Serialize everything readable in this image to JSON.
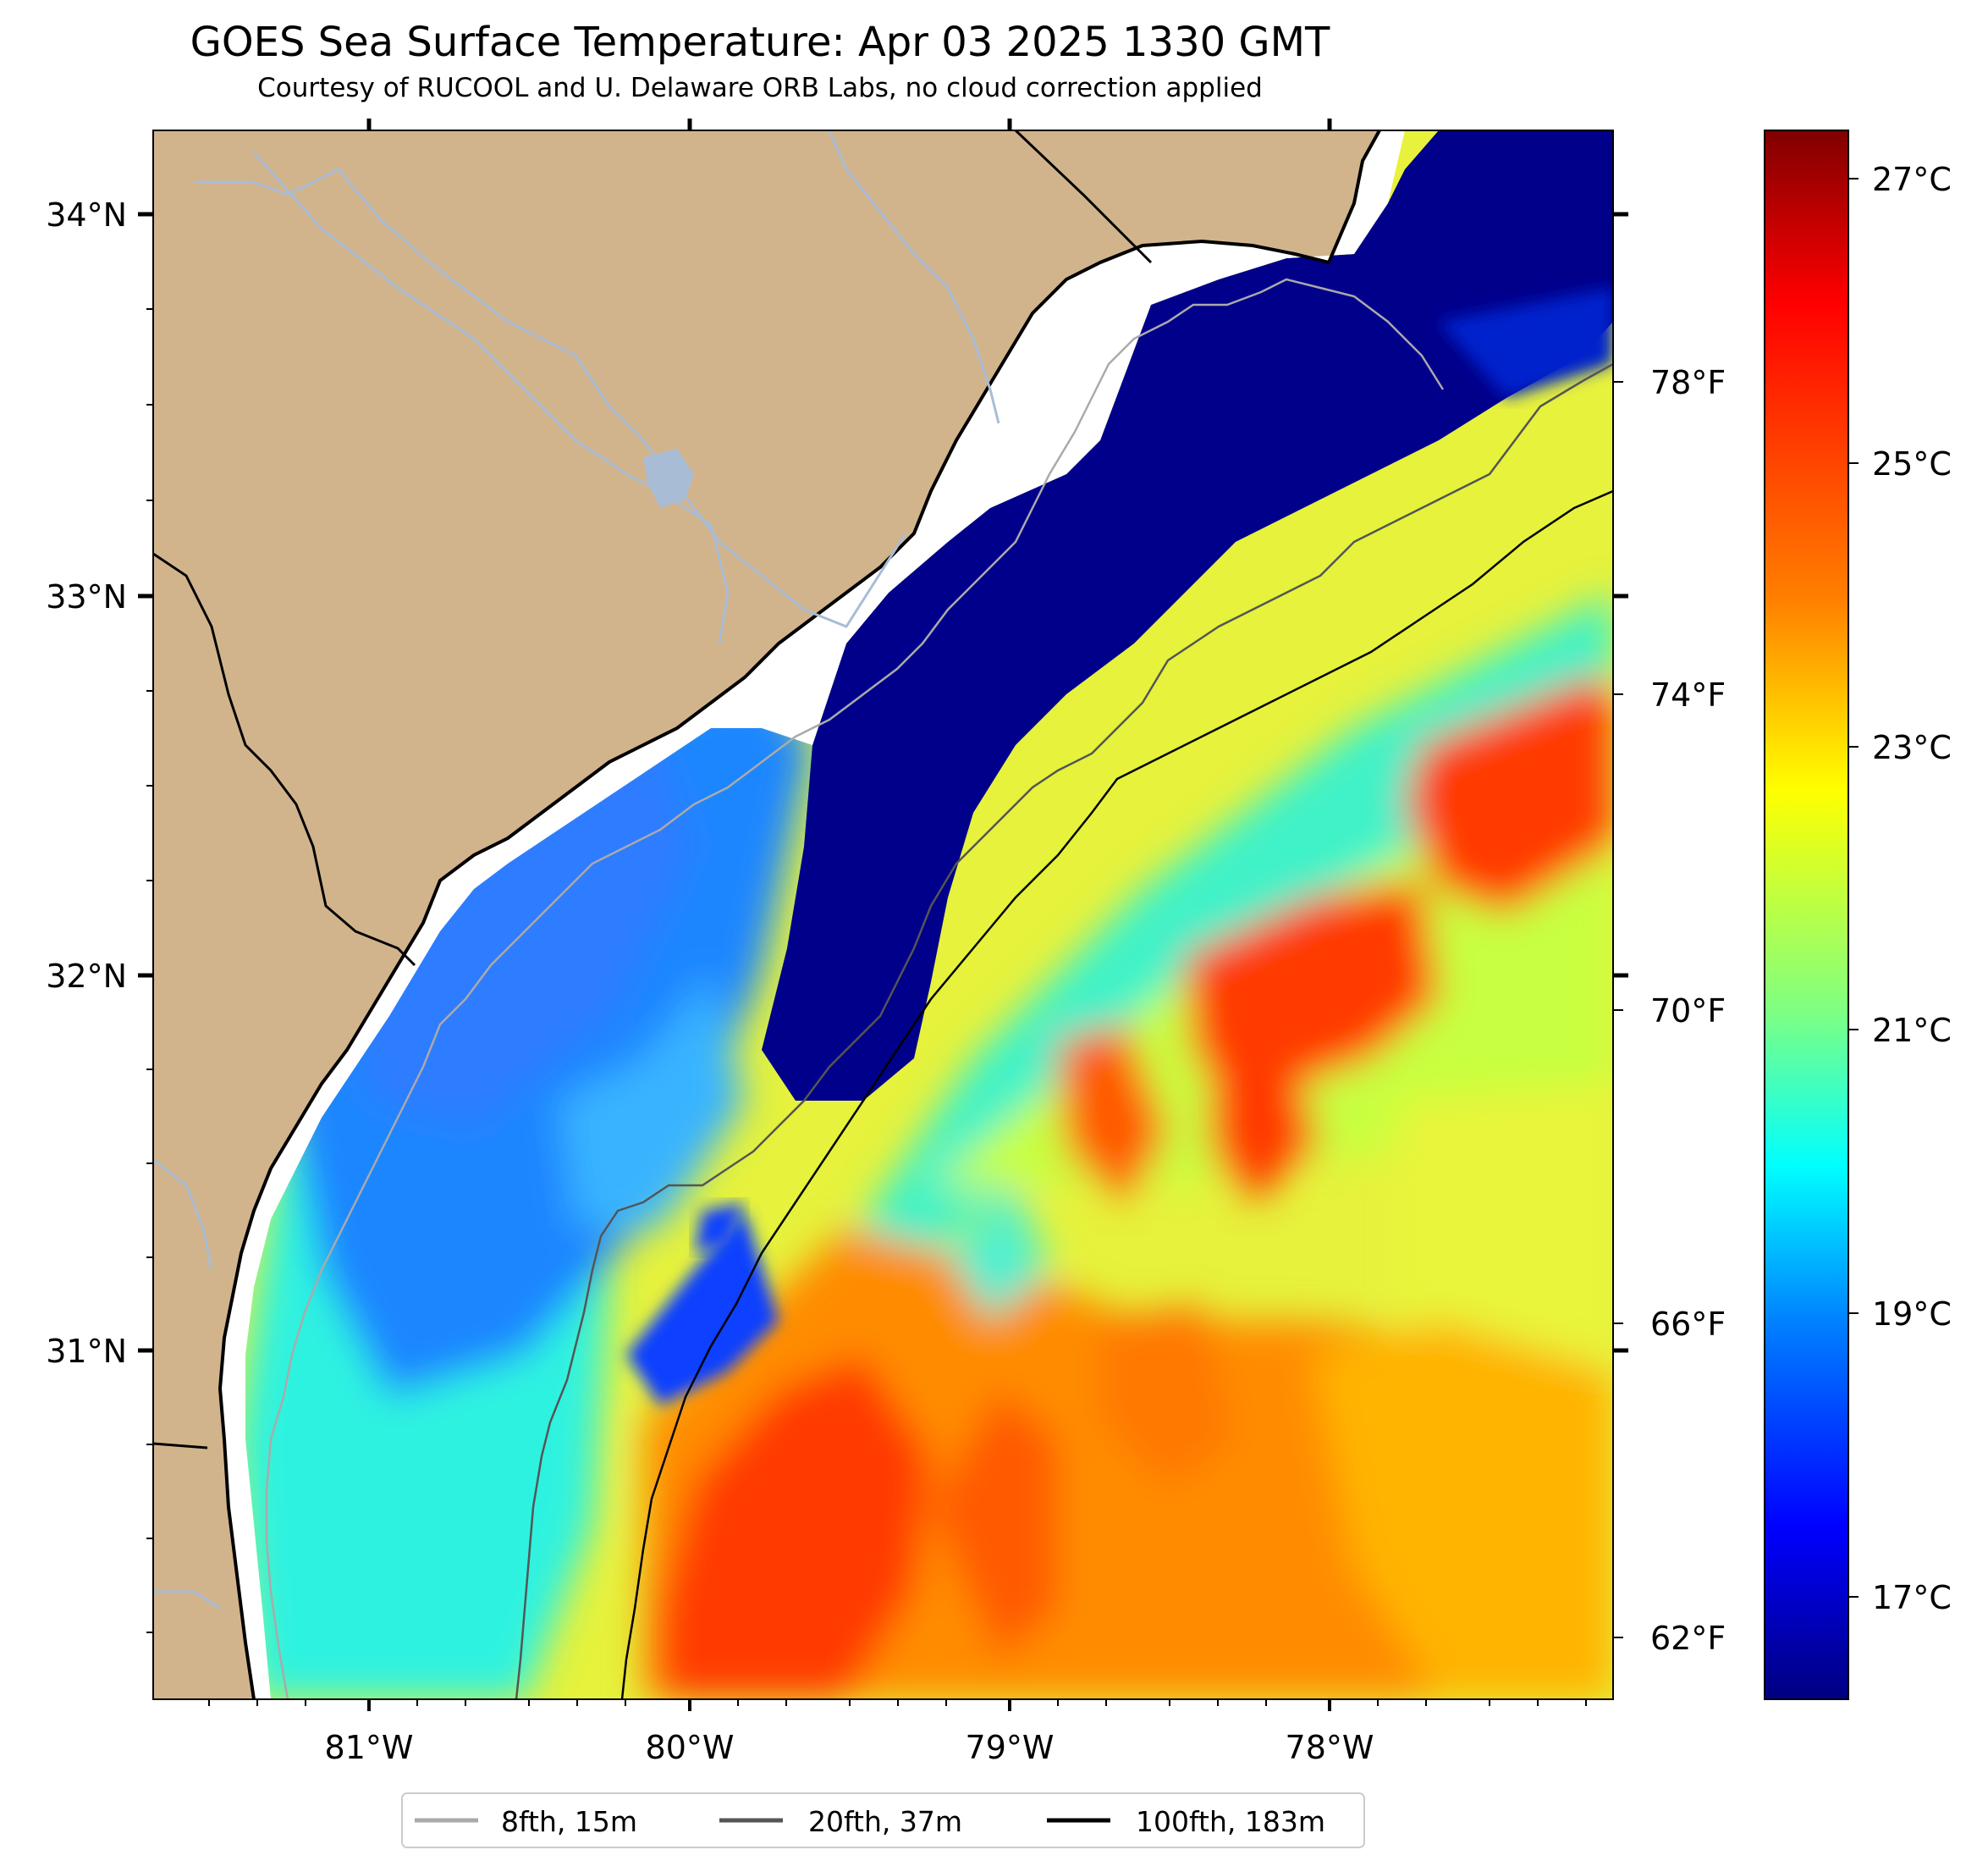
{
  "title": "GOES Sea Surface Temperature: Apr 03 2025 1330 GMT",
  "subtitle": "Courtesy of RUCOOL and U. Delaware ORB Labs, no cloud correction applied",
  "axes": {
    "lat_ticks": [
      "34°N",
      "33°N",
      "32°N",
      "31°N"
    ],
    "lon_ticks": [
      "81°W",
      "80°W",
      "79°W",
      "78°W"
    ],
    "fahrenheit_ticks": [
      "78°F",
      "74°F",
      "70°F",
      "66°F",
      "62°F"
    ]
  },
  "colorbar": {
    "celsius_ticks": [
      "27°C",
      "25°C",
      "23°C",
      "21°C",
      "19°C",
      "17°C"
    ],
    "colormap": [
      "#800000",
      "#ff0000",
      "#ff8000",
      "#ffff00",
      "#80ff80",
      "#00ffff",
      "#0080ff",
      "#0000ff",
      "#000080"
    ]
  },
  "legend": [
    {
      "label": "8fth, 15m",
      "color": "#aaaaaa"
    },
    {
      "label": "20fth, 37m",
      "color": "#555555"
    },
    {
      "label": "100fth, 183m",
      "color": "#000000"
    }
  ],
  "colors": {
    "land": "#d2b48c",
    "river": "#a9bcd6",
    "deep_cold": "#00008b"
  }
}
